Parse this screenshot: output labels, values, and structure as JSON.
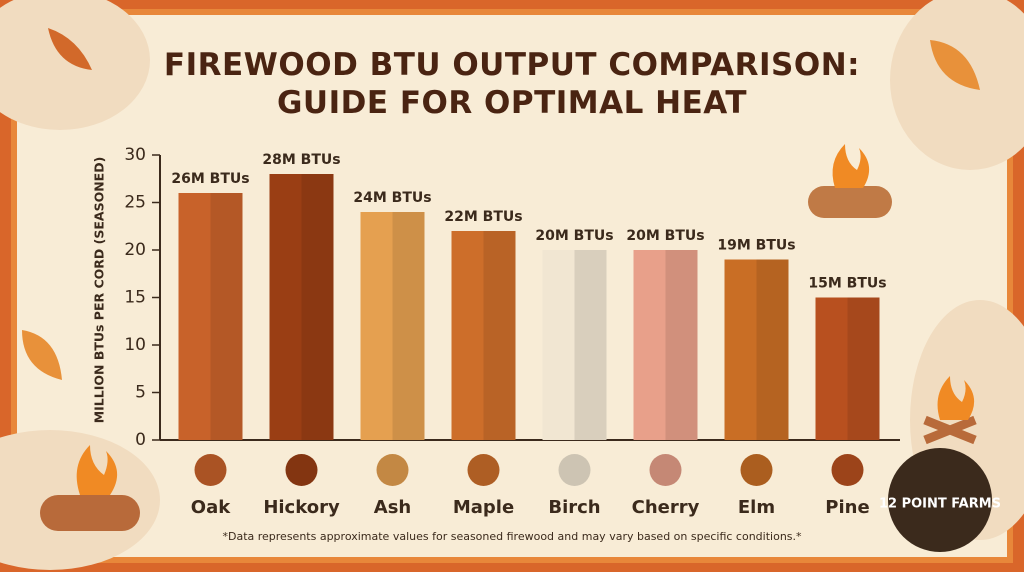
{
  "chart_data": {
    "type": "bar",
    "title": "FIREWOOD BTU OUTPUT COMPARISON:\nGUIDE FOR OPTIMAL HEAT",
    "y_label": "MILLION BTUs PER CORD (SEASONED)",
    "categories": [
      "Oak",
      "Hickory",
      "Ash",
      "Maple",
      "Birch",
      "Cherry",
      "Elm",
      "Pine"
    ],
    "values": [
      26,
      28,
      24,
      22,
      20,
      20,
      19,
      15
    ],
    "value_labels": [
      "26M BTUs",
      "28M BTUs",
      "24M BTUs",
      "22M BTUs",
      "20M BTUs",
      "20M BTUs",
      "19M BTUs",
      "15M BTUs"
    ],
    "colors": [
      "#c8622a",
      "#9a3e14",
      "#e5a050",
      "#cd6e2a",
      "#f1e6d2",
      "#e8a08a",
      "#c96e25",
      "#b8501f"
    ],
    "ylim": [
      0,
      30
    ],
    "yticks": [
      0,
      5,
      10,
      15,
      20,
      25,
      30
    ],
    "footnote": "*Data represents approximate values for seasoned firewood and may vary based on specific conditions.*",
    "logo": "12 POINT FARMS"
  }
}
